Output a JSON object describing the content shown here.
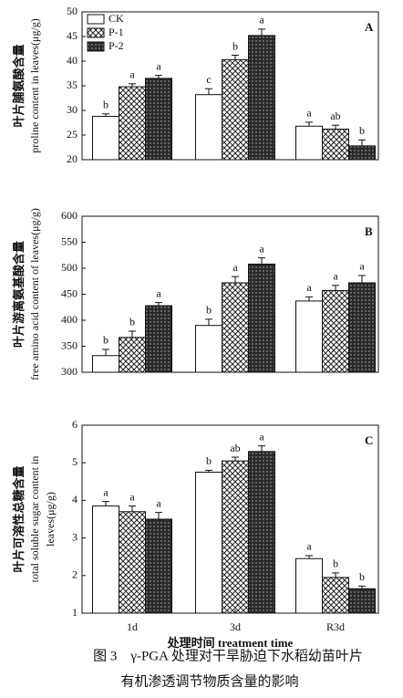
{
  "chart_data": [
    {
      "type": "bar",
      "panel": "A",
      "ylabel": [
        "叶片脯氨酸含量",
        "proline content in leaves(μg/g)"
      ],
      "ylim": [
        20,
        50
      ],
      "yticks": [
        20,
        25,
        30,
        35,
        40,
        45,
        50
      ],
      "legend": "top-left",
      "series": [
        {
          "name": "CK",
          "pattern": "none",
          "color": "#ffffff",
          "values": [
            28.8,
            33.2,
            26.8
          ],
          "errors": [
            0.5,
            1.2,
            0.8
          ],
          "letters": [
            "b",
            "c",
            "a"
          ]
        },
        {
          "name": "P-1",
          "pattern": "crosshatch",
          "color": "#222222",
          "values": [
            34.8,
            40.3,
            26.2
          ],
          "errors": [
            0.6,
            0.9,
            0.8
          ],
          "letters": [
            "a",
            "b",
            "ab"
          ]
        },
        {
          "name": "P-2",
          "pattern": "dots",
          "color": "#222222",
          "values": [
            36.5,
            45.2,
            22.8
          ],
          "errors": [
            0.6,
            1.3,
            1.2
          ],
          "letters": [
            "a",
            "a",
            "b"
          ]
        }
      ]
    },
    {
      "type": "bar",
      "panel": "B",
      "ylabel": [
        "叶片游离氨基酸含量",
        "free amino acid content of leaves(μg/g)"
      ],
      "ylim": [
        300,
        600
      ],
      "yticks": [
        300,
        350,
        400,
        450,
        500,
        550,
        600
      ],
      "series": [
        {
          "pattern": "none",
          "color": "#ffffff",
          "values": [
            332,
            390,
            437
          ],
          "errors": [
            12,
            12,
            8
          ],
          "letters": [
            "b",
            "b",
            "a"
          ]
        },
        {
          "pattern": "crosshatch",
          "color": "#222222",
          "values": [
            367,
            472,
            457
          ],
          "errors": [
            12,
            12,
            10
          ],
          "letters": [
            "b",
            "a",
            "a"
          ]
        },
        {
          "pattern": "dots",
          "color": "#222222",
          "values": [
            428,
            508,
            472
          ],
          "errors": [
            6,
            12,
            14
          ],
          "letters": [
            "a",
            "a",
            "a"
          ]
        }
      ]
    },
    {
      "type": "bar",
      "panel": "C",
      "ylabel": [
        "叶片可溶性总糖含量",
        "total soluble sugar content in",
        "leaves(μg/g)"
      ],
      "x_label": "处理时间 treatment time",
      "categories": [
        "1d",
        "3d",
        "R3d"
      ],
      "ylim": [
        1,
        6
      ],
      "yticks": [
        1,
        2,
        3,
        4,
        5,
        6
      ],
      "series": [
        {
          "pattern": "none",
          "color": "#ffffff",
          "values": [
            3.85,
            4.75,
            2.45
          ],
          "errors": [
            0.12,
            0.05,
            0.08
          ],
          "letters": [
            "a",
            "b",
            "a"
          ]
        },
        {
          "pattern": "crosshatch",
          "color": "#222222",
          "values": [
            3.7,
            5.05,
            1.95
          ],
          "errors": [
            0.15,
            0.1,
            0.12
          ],
          "letters": [
            "a",
            "ab",
            "b"
          ]
        },
        {
          "pattern": "dots",
          "color": "#222222",
          "values": [
            3.5,
            5.3,
            1.65
          ],
          "errors": [
            0.18,
            0.15,
            0.07
          ],
          "letters": [
            "a",
            "a",
            "b"
          ]
        }
      ]
    }
  ],
  "caption": [
    "图 3　γ-PGA 处理对干旱胁迫下水稻幼苗叶片",
    "有机渗透调节物质含量的影响"
  ]
}
